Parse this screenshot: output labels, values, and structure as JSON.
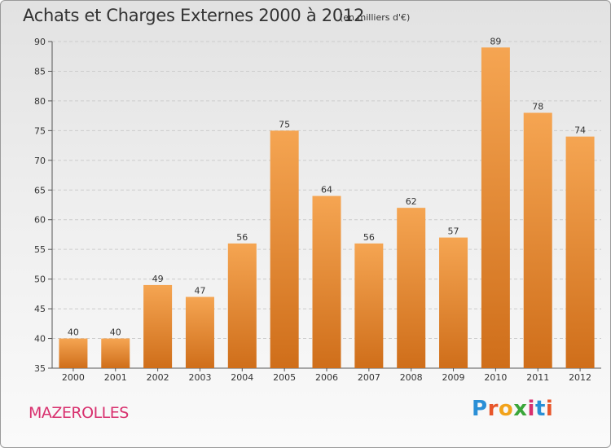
{
  "header": {
    "title": "Achats et Charges Externes 2000 à 2012",
    "subtitle": "(en milliers d'€)"
  },
  "footer": {
    "town": "MAZEROLLES",
    "logo": "Proxiti",
    "logo_colors": [
      "#2a8fd6",
      "#e8562a",
      "#f2a31b",
      "#3aa63a",
      "#d8306e",
      "#2a8fd6",
      "#e8562a"
    ]
  },
  "colors": {
    "bar_light": "#f5a552",
    "bar_dark": "#cf6e1a",
    "grid": "#cccccc"
  },
  "chart_data": {
    "type": "bar",
    "categories": [
      "2000",
      "2001",
      "2002",
      "2003",
      "2004",
      "2005",
      "2006",
      "2007",
      "2008",
      "2009",
      "2010",
      "2011",
      "2012"
    ],
    "values": [
      40,
      40,
      49,
      47,
      56,
      75,
      64,
      56,
      62,
      57,
      89,
      78,
      74
    ],
    "title": "Achats et Charges Externes 2000 à 2012",
    "subtitle": "(en milliers d'€)",
    "xlabel": "",
    "ylabel": "",
    "ylim": [
      35,
      90
    ],
    "yticks": [
      35,
      40,
      45,
      50,
      55,
      60,
      65,
      70,
      75,
      80,
      85,
      90
    ],
    "grid": true,
    "data_labels": true
  }
}
